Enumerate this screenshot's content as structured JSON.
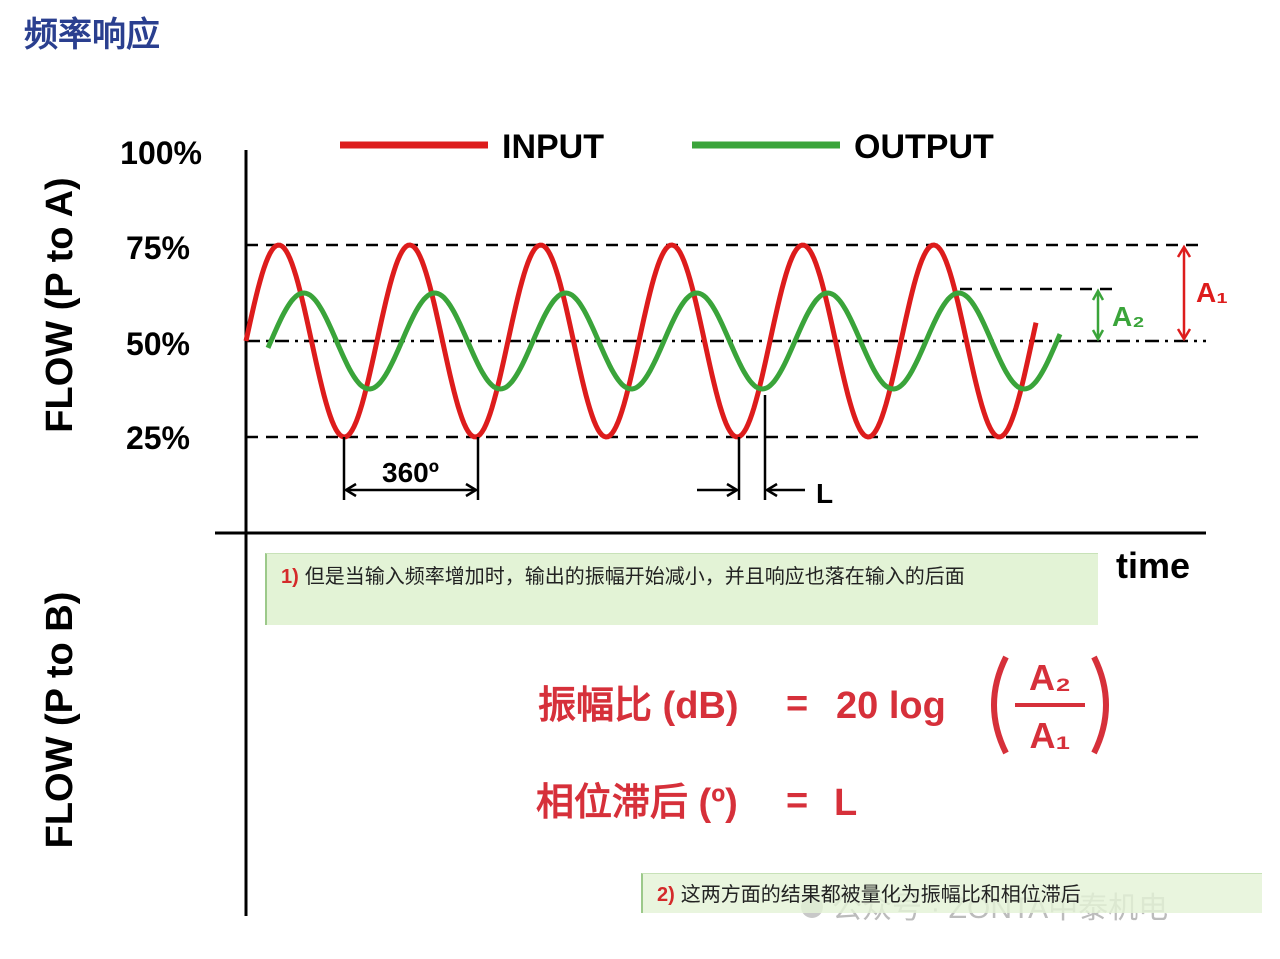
{
  "header": {
    "title": "频率响应"
  },
  "axes": {
    "y_label_top": "FLOW (P to A)",
    "y_label_bottom": "FLOW (P to B)",
    "x_label": "time",
    "ticks": [
      "100%",
      "75%",
      "50%",
      "25%"
    ]
  },
  "legend": {
    "input": "INPUT",
    "output": "OUTPUT"
  },
  "annotations": {
    "period": "360º",
    "lag": "L",
    "a1": "A₁",
    "a2": "A₂"
  },
  "notes": [
    {
      "number": "1)",
      "text": "但是当输入频率增加时，输出的振幅开始减小，并且响应也落在输入的后面"
    },
    {
      "number": "2)",
      "text": "这两方面的结果都被量化为振幅比和相位滞后"
    }
  ],
  "formulas": {
    "amplitude_label": "振幅比 (dB)",
    "equals": "=",
    "amplitude_expr": "20 log",
    "numerator": "A₂",
    "denominator": "A₁",
    "phase_label": "相位滞后 (º)",
    "phase_expr": "L"
  },
  "watermark": "公众号 · ZONTA中泰机电"
}
